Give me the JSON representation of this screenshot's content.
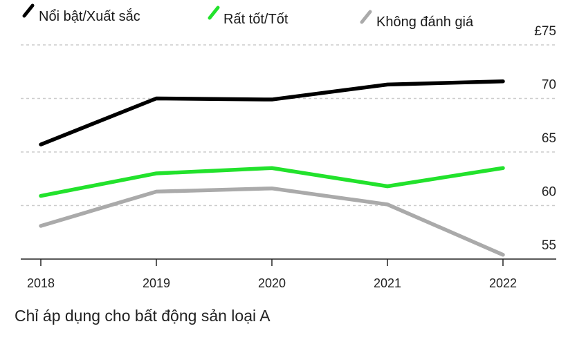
{
  "chart_data": {
    "type": "line",
    "x": [
      "2018",
      "2019",
      "2020",
      "2021",
      "2022"
    ],
    "series": [
      {
        "name": "Nổi bật/Xuất sắc",
        "color": "#000000",
        "values": [
          65.7,
          70.0,
          69.9,
          71.3,
          71.6
        ]
      },
      {
        "name": "Rất tốt/Tốt",
        "color": "#22e22c",
        "values": [
          60.9,
          63.0,
          63.5,
          61.8,
          63.5
        ]
      },
      {
        "name": "Không đánh giá",
        "color": "#aaaaaa",
        "values": [
          58.1,
          61.3,
          61.6,
          60.1,
          55.4
        ]
      }
    ],
    "y_ticks": [
      {
        "value": 75,
        "label": "£75"
      },
      {
        "value": 70,
        "label": "70"
      },
      {
        "value": 65,
        "label": "65"
      },
      {
        "value": 60,
        "label": "60"
      },
      {
        "value": 55,
        "label": "55"
      }
    ],
    "ylim": [
      53,
      75
    ],
    "y_axis_side": "right",
    "grid": "horizontal-dashed",
    "legend_placement": "top"
  },
  "footnote": "Chỉ áp dụng cho bất động sản loại A"
}
